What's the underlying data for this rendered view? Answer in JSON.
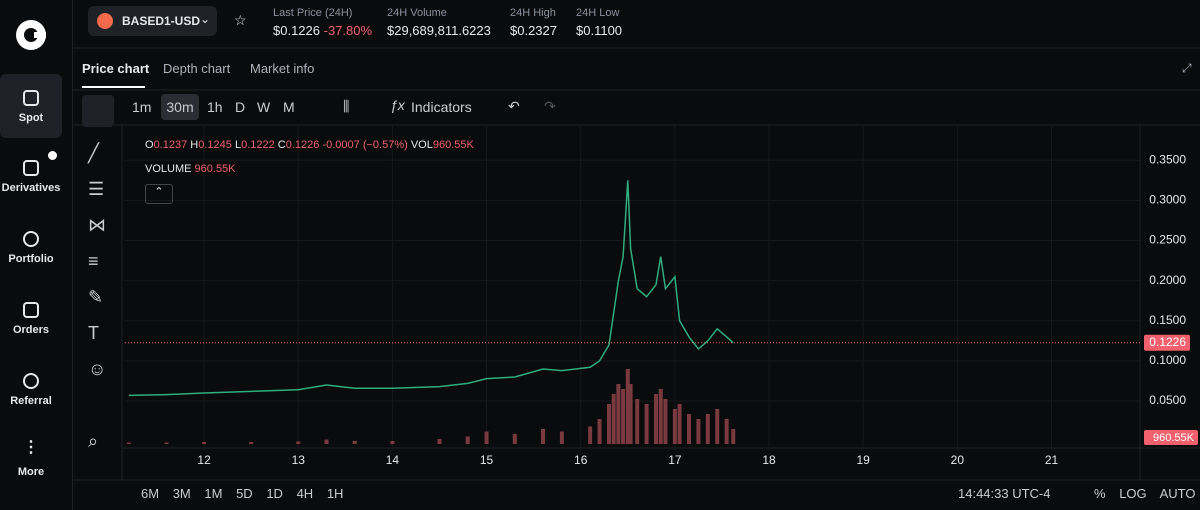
{
  "sidebar": {
    "items": [
      "Spot",
      "Derivatives",
      "Portfolio",
      "Orders",
      "Referral",
      "More"
    ]
  },
  "header": {
    "pair": "BASED1-USD",
    "stats": [
      {
        "label": "Last Price (24H)",
        "value": "$0.1226",
        "change": "-37.80%"
      },
      {
        "label": "24H Volume",
        "value": "$29,689,811.6223"
      },
      {
        "label": "24H High",
        "value": "$0.2327"
      },
      {
        "label": "24H Low",
        "value": "$0.1100"
      }
    ]
  },
  "tabs": [
    "Price chart",
    "Depth chart",
    "Market info"
  ],
  "intervals": [
    "1m",
    "30m",
    "1h",
    "D",
    "W",
    "M"
  ],
  "indicators": "Indicators",
  "legend": {
    "ohlc": [
      {
        "key": "O",
        "value": "0.1237"
      },
      {
        "key": "H",
        "value": "0.1245"
      },
      {
        "key": "L",
        "value": "0.1222"
      },
      {
        "key": "C",
        "value": "0.1226"
      }
    ],
    "change": "-0.0007 (−0.57%)",
    "vol_key": "VOL",
    "vol_value": "960.55K",
    "volume_key": "VOLUME",
    "volume_value": "960.55K"
  },
  "chart_data": {
    "type": "line",
    "color": "#2fae7e",
    "volume_color": "#7a3a40",
    "x": [
      11.2,
      11.6,
      12.0,
      12.5,
      13.0,
      13.3,
      13.6,
      14.0,
      14.5,
      14.8,
      15.0,
      15.3,
      15.6,
      15.8,
      16.1,
      16.2,
      16.3,
      16.35,
      16.4,
      16.45,
      16.5,
      16.53,
      16.6,
      16.7,
      16.8,
      16.85,
      16.9,
      17.0,
      17.05,
      17.15,
      17.25,
      17.35,
      17.45,
      17.55,
      17.62
    ],
    "values": [
      0.057,
      0.058,
      0.06,
      0.062,
      0.064,
      0.07,
      0.066,
      0.066,
      0.068,
      0.072,
      0.078,
      0.08,
      0.09,
      0.088,
      0.092,
      0.1,
      0.12,
      0.16,
      0.2,
      0.23,
      0.325,
      0.24,
      0.19,
      0.18,
      0.195,
      0.23,
      0.19,
      0.205,
      0.15,
      0.13,
      0.115,
      0.125,
      0.14,
      0.13,
      0.1226
    ],
    "volume": [
      300,
      300,
      400,
      400,
      500,
      900,
      600,
      600,
      1000,
      1500,
      2500,
      2000,
      3000,
      2500,
      3500,
      5000,
      8000,
      10000,
      12000,
      11000,
      15000,
      12000,
      9000,
      8000,
      10000,
      11000,
      9000,
      7000,
      8000,
      6000,
      5000,
      6000,
      7000,
      5000,
      3000
    ],
    "xlim": [
      11.16,
      21.94
    ],
    "ylim": [
      -0.011,
      0.394
    ],
    "y2lim": [
      0,
      20000
    ],
    "xticks": [
      12,
      13,
      14,
      15,
      16,
      17,
      18,
      19,
      20,
      21
    ],
    "yticks": [
      {
        "value": 0.35,
        "label": "0.3500"
      },
      {
        "value": 0.3,
        "label": "0.3000"
      },
      {
        "value": 0.25,
        "label": "0.2500"
      },
      {
        "value": 0.2,
        "label": "0.2000"
      },
      {
        "value": 0.15,
        "label": "0.1500"
      },
      {
        "value": 0.1,
        "label": "0.1000"
      },
      {
        "value": 0.05,
        "label": "0.0500"
      }
    ],
    "last_price": {
      "value": 0.1226,
      "label": "0.1226"
    },
    "grid": true
  },
  "ranges": [
    "6M",
    "3M",
    "1M",
    "5D",
    "1D",
    "4H",
    "1H"
  ],
  "clock": "14:44:33 UTC-4",
  "scale_options": [
    "%",
    "LOG",
    "AUTO"
  ]
}
